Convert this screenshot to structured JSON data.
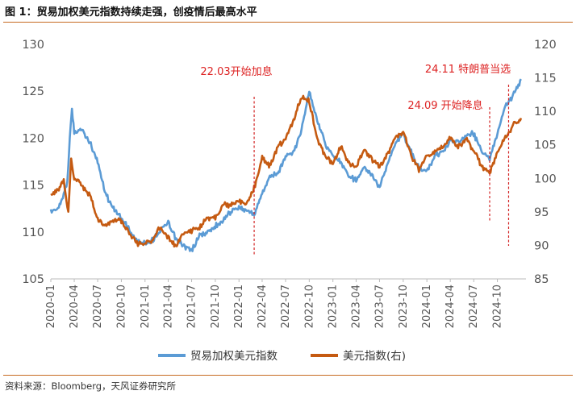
{
  "title": "图 1：贸易加权美元指数持续走强，创疫情后最高水平",
  "source": "资料来源：Bloomberg，天风证券研究所",
  "chart_data": {
    "type": "line",
    "x_ticks": [
      "2020-01",
      "2020-04",
      "2020-07",
      "2020-10",
      "2021-01",
      "2021-04",
      "2021-07",
      "2021-10",
      "2022-01",
      "2022-04",
      "2022-07",
      "2022-10",
      "2023-01",
      "2023-04",
      "2023-07",
      "2023-10",
      "2024-01",
      "2024-04",
      "2024-07",
      "2024-10"
    ],
    "y_left": {
      "min": 105,
      "max": 130,
      "ticks": [
        105,
        110,
        115,
        120,
        125,
        130
      ]
    },
    "y_right": {
      "min": 85,
      "max": 120,
      "ticks": [
        85,
        90,
        95,
        100,
        105,
        110,
        115,
        120
      ]
    },
    "legend_position": "bottom",
    "grid": false,
    "series": [
      {
        "name": "贸易加权美元指数",
        "axis": "left",
        "color": "#5b9bd5",
        "points": [
          [
            "2020-01",
            112.2
          ],
          [
            "2020-02",
            112.6
          ],
          [
            "2020-02-20",
            114.0
          ],
          [
            "2020-03-05",
            115.5
          ],
          [
            "2020-03-18",
            121.5
          ],
          [
            "2020-03-23",
            123.0
          ],
          [
            "2020-04",
            120.5
          ],
          [
            "2020-05",
            121.0
          ],
          [
            "2020-06",
            119.5
          ],
          [
            "2020-07",
            117.5
          ],
          [
            "2020-08",
            114.0
          ],
          [
            "2020-09",
            112.5
          ],
          [
            "2020-10",
            111.5
          ],
          [
            "2020-11",
            110.2
          ],
          [
            "2020-12",
            109.0
          ],
          [
            "2021-01",
            108.8
          ],
          [
            "2021-02",
            109.2
          ],
          [
            "2021-03",
            110.2
          ],
          [
            "2021-04",
            111.0
          ],
          [
            "2021-05",
            109.2
          ],
          [
            "2021-06",
            108.5
          ],
          [
            "2021-07",
            108.0
          ],
          [
            "2021-08",
            109.6
          ],
          [
            "2021-09",
            110.0
          ],
          [
            "2021-10",
            110.6
          ],
          [
            "2021-11",
            111.3
          ],
          [
            "2021-12",
            112.2
          ],
          [
            "2022-01",
            112.6
          ],
          [
            "2022-02",
            112.4
          ],
          [
            "2022-03",
            111.8
          ],
          [
            "2022-04",
            114.2
          ],
          [
            "2022-05",
            115.8
          ],
          [
            "2022-06",
            116.2
          ],
          [
            "2022-07",
            118.0
          ],
          [
            "2022-08",
            118.5
          ],
          [
            "2022-09",
            121.0
          ],
          [
            "2022-10",
            125.0
          ],
          [
            "2022-11",
            122.0
          ],
          [
            "2022-12",
            119.5
          ],
          [
            "2023-01",
            118.0
          ],
          [
            "2023-02",
            117.5
          ],
          [
            "2023-03",
            116.0
          ],
          [
            "2023-04",
            115.5
          ],
          [
            "2023-05",
            116.8
          ],
          [
            "2023-06",
            116.2
          ],
          [
            "2023-07",
            114.8
          ],
          [
            "2023-08",
            117.2
          ],
          [
            "2023-09",
            119.5
          ],
          [
            "2023-10",
            120.5
          ],
          [
            "2023-11",
            118.5
          ],
          [
            "2023-12",
            116.8
          ],
          [
            "2024-01",
            116.5
          ],
          [
            "2024-02",
            118.2
          ],
          [
            "2024-03",
            118.5
          ],
          [
            "2024-04",
            119.6
          ],
          [
            "2024-05",
            119.5
          ],
          [
            "2024-06",
            120.2
          ],
          [
            "2024-07",
            120.5
          ],
          [
            "2024-08",
            118.5
          ],
          [
            "2024-09",
            117.8
          ],
          [
            "2024-10",
            120.5
          ],
          [
            "2024-11",
            123.5
          ],
          [
            "2024-12",
            124.5
          ],
          [
            "2025-01",
            126.3
          ]
        ]
      },
      {
        "name": "美元指数(右)",
        "axis": "right",
        "color": "#c55a11",
        "points": [
          [
            "2020-01",
            97.4
          ],
          [
            "2020-02",
            98.5
          ],
          [
            "2020-02-20",
            99.8
          ],
          [
            "2020-03-09",
            95.0
          ],
          [
            "2020-03-20",
            102.8
          ],
          [
            "2020-04",
            100.0
          ],
          [
            "2020-05",
            99.0
          ],
          [
            "2020-06",
            97.3
          ],
          [
            "2020-07",
            94.0
          ],
          [
            "2020-08",
            92.9
          ],
          [
            "2020-09",
            93.8
          ],
          [
            "2020-10",
            93.5
          ],
          [
            "2020-11",
            92.0
          ],
          [
            "2020-12",
            90.3
          ],
          [
            "2021-01",
            90.2
          ],
          [
            "2021-02",
            90.9
          ],
          [
            "2021-03",
            92.8
          ],
          [
            "2021-04",
            91.0
          ],
          [
            "2021-05",
            90.0
          ],
          [
            "2021-06",
            91.9
          ],
          [
            "2021-07",
            92.3
          ],
          [
            "2021-08",
            92.7
          ],
          [
            "2021-09",
            94.2
          ],
          [
            "2021-10",
            94.0
          ],
          [
            "2021-11",
            96.0
          ],
          [
            "2021-12",
            96.0
          ],
          [
            "2022-01",
            96.6
          ],
          [
            "2022-02",
            96.2
          ],
          [
            "2022-03",
            98.5
          ],
          [
            "2022-04",
            103.0
          ],
          [
            "2022-05",
            101.8
          ],
          [
            "2022-06",
            104.7
          ],
          [
            "2022-07",
            106.0
          ],
          [
            "2022-08",
            108.7
          ],
          [
            "2022-09",
            112.1
          ],
          [
            "2022-10",
            111.5
          ],
          [
            "2022-11",
            105.9
          ],
          [
            "2022-12",
            103.5
          ],
          [
            "2023-01",
            102.2
          ],
          [
            "2023-02",
            104.8
          ],
          [
            "2023-03",
            102.5
          ],
          [
            "2023-04",
            101.7
          ],
          [
            "2023-05",
            104.3
          ],
          [
            "2023-06",
            102.9
          ],
          [
            "2023-07",
            101.8
          ],
          [
            "2023-08",
            103.6
          ],
          [
            "2023-09",
            106.2
          ],
          [
            "2023-10",
            106.7
          ],
          [
            "2023-11",
            103.5
          ],
          [
            "2023-12",
            101.3
          ],
          [
            "2024-01",
            103.3
          ],
          [
            "2024-02",
            104.0
          ],
          [
            "2024-03",
            104.5
          ],
          [
            "2024-04",
            106.2
          ],
          [
            "2024-05",
            104.6
          ],
          [
            "2024-06",
            105.9
          ],
          [
            "2024-07",
            104.1
          ],
          [
            "2024-08",
            101.7
          ],
          [
            "2024-09",
            100.8
          ],
          [
            "2024-10",
            104.0
          ],
          [
            "2024-11",
            106.0
          ],
          [
            "2024-12",
            108.0
          ],
          [
            "2025-01",
            109.0
          ]
        ]
      }
    ],
    "annotations": [
      {
        "text": "22.03开始加息",
        "date": "2022-03"
      },
      {
        "text": "24.09 开始降息",
        "date": "2024-09"
      },
      {
        "text": "24.11 特朗普当选",
        "date": "2024-11"
      }
    ],
    "marker_color": "#d22222"
  }
}
